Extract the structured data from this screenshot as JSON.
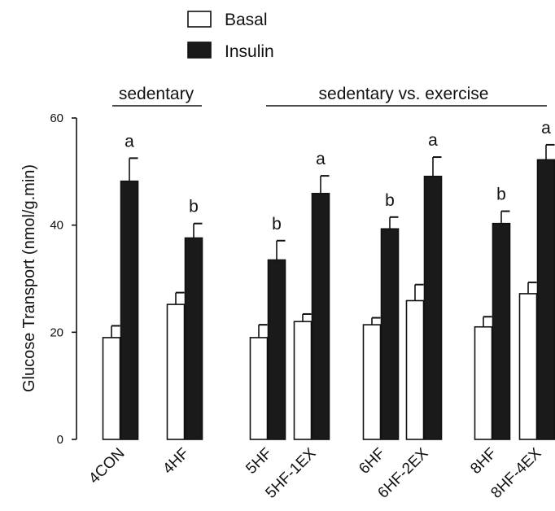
{
  "chart_data": {
    "type": "bar",
    "title": "",
    "xlabel": "",
    "ylabel": "Glucose Transport (nmol/g.min)",
    "ylim": [
      0,
      60
    ],
    "yticks": [
      0,
      20,
      40,
      60
    ],
    "grid": false,
    "legend_position": "top-left",
    "categories": [
      "4CON",
      "4HF",
      "5HF",
      "5HF-1EX",
      "6HF",
      "6HF-2EX",
      "8HF",
      "8HF-4EX"
    ],
    "group_layout": [
      [
        "4CON"
      ],
      [
        "4HF"
      ],
      [
        "5HF",
        "5HF-1EX"
      ],
      [
        "6HF",
        "6HF-2EX"
      ],
      [
        "8HF",
        "8HF-4EX"
      ]
    ],
    "series": [
      {
        "name": "Basal",
        "color": "#ffffff",
        "values": [
          19.0,
          25.2,
          19.0,
          22.0,
          21.4,
          25.9,
          21.0,
          27.2
        ],
        "errors": [
          2.2,
          2.2,
          2.4,
          1.4,
          1.3,
          3.0,
          1.9,
          2.1
        ]
      },
      {
        "name": "Insulin",
        "color": "#1a1a1a",
        "values": [
          48.2,
          37.6,
          33.5,
          45.9,
          39.3,
          49.1,
          40.3,
          52.2
        ],
        "errors": [
          4.3,
          2.7,
          3.6,
          3.3,
          2.2,
          3.6,
          2.3,
          2.8
        ],
        "significance": [
          "a",
          "b",
          "b",
          "a",
          "b",
          "a",
          "b",
          "a"
        ]
      }
    ],
    "group_labels": [
      {
        "text": "sedentary",
        "from": "4CON",
        "to": "4HF"
      },
      {
        "text": "sedentary vs. exercise",
        "from": "5HF",
        "to": "8HF-4EX"
      }
    ]
  }
}
